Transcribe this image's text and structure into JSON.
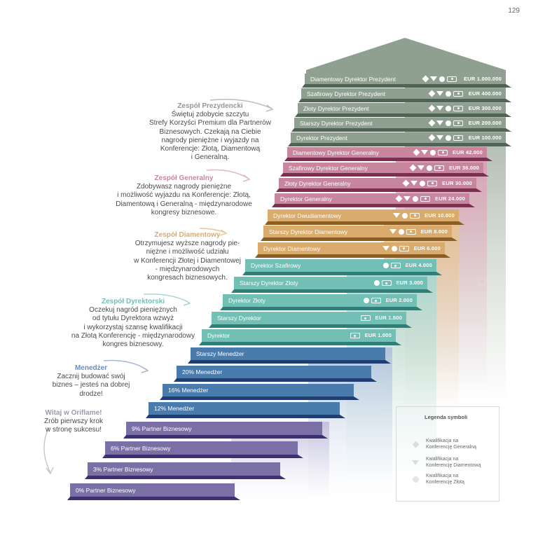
{
  "page_number": "129",
  "steps": [
    {
      "label": "Diamentowy Dyrektor Prezydent",
      "amount": "EUR 1.000.000",
      "icons": [
        "diamond",
        "gem",
        "circle",
        "cash"
      ],
      "color": "#8fa090"
    },
    {
      "label": "Szafirowy Dyrektor Prezydent",
      "amount": "EUR 400.000",
      "icons": [
        "diamond",
        "gem",
        "circle",
        "cash"
      ],
      "color": "#8fa090"
    },
    {
      "label": "Złoty Dyrektor Prezydent",
      "amount": "EUR 300.000",
      "icons": [
        "diamond",
        "gem",
        "circle",
        "cash"
      ],
      "color": "#8fa090"
    },
    {
      "label": "Starszy Dyrektor Prezydent",
      "amount": "EUR 200.000",
      "icons": [
        "diamond",
        "gem",
        "circle",
        "cash"
      ],
      "color": "#8fa090"
    },
    {
      "label": "Dyrektor Prezydent",
      "amount": "EUR 100.000",
      "icons": [
        "diamond",
        "gem",
        "circle",
        "cash"
      ],
      "color": "#8fa090"
    },
    {
      "label": "Diamentowy Dyrektor Generalny",
      "amount": "EUR 42.000",
      "icons": [
        "diamond",
        "gem",
        "circle",
        "cash"
      ],
      "color": "#c7869e"
    },
    {
      "label": "Szafirowy Dyrektor Generalny",
      "amount": "EUR 36.000",
      "icons": [
        "diamond",
        "gem",
        "circle",
        "cash"
      ],
      "color": "#c7869e"
    },
    {
      "label": "Złoty Dyrektor Generalny",
      "amount": "EUR 30.000",
      "icons": [
        "diamond",
        "gem",
        "circle",
        "cash"
      ],
      "color": "#c7869e"
    },
    {
      "label": "Dyrektor Generalny",
      "amount": "EUR 24.000",
      "icons": [
        "diamond",
        "gem",
        "circle",
        "cash"
      ],
      "color": "#c7869e"
    },
    {
      "label": "Dyrektor Dwudiamentowy",
      "amount": "EUR 10.000",
      "icons": [
        "gem",
        "circle",
        "cash"
      ],
      "color": "#d9ac6e"
    },
    {
      "label": "Starszy Dyrektor Diamentowy",
      "amount": "EUR 8.000",
      "icons": [
        "gem",
        "circle",
        "cash"
      ],
      "color": "#d9ac6e"
    },
    {
      "label": "Dyrektor Diamentowy",
      "amount": "EUR 6.000",
      "icons": [
        "gem",
        "circle",
        "cash"
      ],
      "color": "#d9ac6e"
    },
    {
      "label": "Dyrektor Szafirowy",
      "amount": "EUR 4.000",
      "icons": [
        "circle",
        "cash"
      ],
      "color": "#72c0b5"
    },
    {
      "label": "Starszy Dyrektor Złoty",
      "amount": "EUR 3.000",
      "icons": [
        "circle",
        "cash"
      ],
      "color": "#72c0b5"
    },
    {
      "label": "Dyrektor Złoty",
      "amount": "EUR 2.000",
      "icons": [
        "circle",
        "cash"
      ],
      "color": "#72c0b5"
    },
    {
      "label": "Starszy Dyrektor",
      "amount": "EUR 1.500",
      "icons": [
        "cash"
      ],
      "color": "#72c0b5"
    },
    {
      "label": "Dyrektor",
      "amount": "EUR 1.000",
      "icons": [
        "cash"
      ],
      "color": "#72c0b5"
    },
    {
      "label": "Starszy Menedżer",
      "amount": "",
      "icons": [],
      "color": "#4a7bad"
    },
    {
      "label": "20% Menedżer",
      "amount": "",
      "icons": [],
      "color": "#4a7bad"
    },
    {
      "label": "16% Menedżer",
      "amount": "",
      "icons": [],
      "color": "#4a7bad"
    },
    {
      "label": "12% Menedżer",
      "amount": "",
      "icons": [],
      "color": "#4a7bad"
    },
    {
      "label": "9% Partner Biznesowy",
      "amount": "",
      "icons": [],
      "color": "#7a70a6"
    },
    {
      "label": "6% Partner Biznesowy",
      "amount": "",
      "icons": [],
      "color": "#7a70a6"
    },
    {
      "label": "3% Partner Biznesowy",
      "amount": "",
      "icons": [],
      "color": "#7a70a6"
    },
    {
      "label": "0% Partner Biznesowy",
      "amount": "",
      "icons": [],
      "color": "#7a70a6"
    }
  ],
  "teams": [
    {
      "title": "Zespół Prezydencki",
      "title_color": "#8f9a90",
      "lines": [
        "Świętuj zdobycie szczytu",
        "Strefy Korzyści Premium dla Partnerów",
        "Biznesowych. Czekają na Ciebie",
        "nagrody pieniężne i wyjazdy na",
        "Konferencje: Złotą, Diamentową",
        "i Generalną."
      ]
    },
    {
      "title": "Zespół Generalny",
      "title_color": "#c7869e",
      "lines": [
        "Zdobywasz nagrody pieniężne",
        "i możliwość wyjazdu na Konferencje: Złotą,",
        "Diamentową i Generalną - międzynarodowe",
        "kongresy biznesowe."
      ]
    },
    {
      "title": "Zespół Diamentowy",
      "title_color": "#d9ac6e",
      "lines": [
        "Otrzymujesz wyższe nagrody pie-",
        "niężne i możliwość udziału",
        "w Konferencji Złotej i Diamentowej",
        "- międzynarodowych",
        "kongresach biznesowych."
      ]
    },
    {
      "title": "Zespół Dyrektorski",
      "title_color": "#72c0b5",
      "lines": [
        "Oczekuj nagród pieniężnych",
        "od tytułu Dyrektora  wzwyż",
        "i wykorzystaj szansę kwalifikacji",
        "na Złotą Konferencję - międzynarodowy",
        "kongres biznesowy."
      ]
    },
    {
      "title": "Menedżer",
      "title_color": "#6a8cbf",
      "lines": [
        "Zacznij budować swój",
        "biznes – jesteś na dobrej",
        "drodze!"
      ]
    },
    {
      "title": "Witaj w Oriflame!",
      "title_color": "#9a9aa8",
      "lines": [
        "Zrób pierwszy krok",
        "w stronę sukcesu!"
      ]
    }
  ],
  "legend": {
    "title": "Legenda symboli",
    "items": [
      {
        "icon": "diamond-icon",
        "text": [
          "Kwalifikacja na",
          "Konferencję Generalną"
        ]
      },
      {
        "icon": "gem-icon",
        "text": [
          "Kwalifikacja na",
          "Konferencję Diamentową"
        ]
      },
      {
        "icon": "circle-icon",
        "text": [
          "Kwalifikacja na",
          "Konferencję Złotą"
        ]
      }
    ]
  }
}
